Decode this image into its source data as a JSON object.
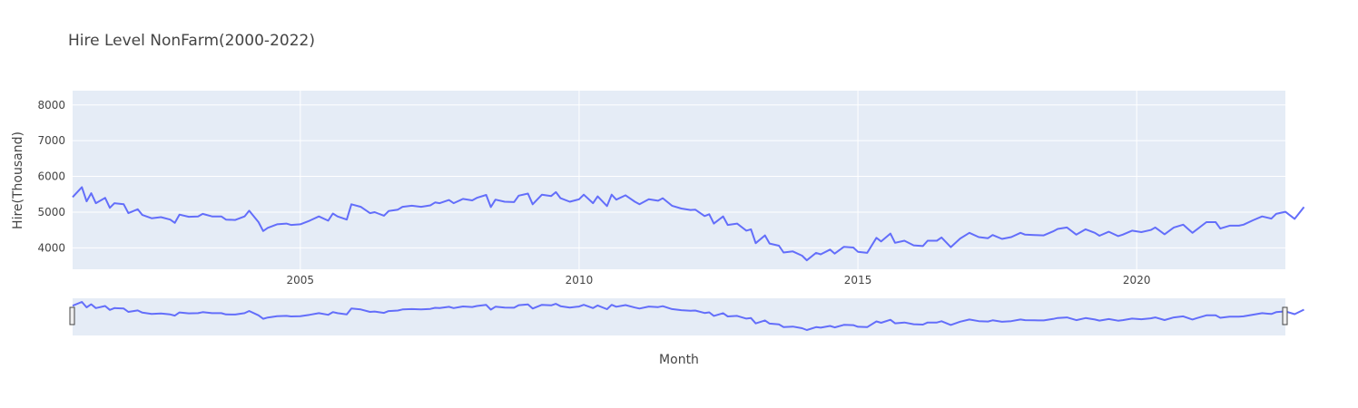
{
  "chart_data": {
    "type": "line",
    "title": "Hire Level NonFarm(2000-2022)",
    "xlabel": "Month",
    "ylabel": "Hire(Thousand)",
    "x_ticks": [
      "2005",
      "2010",
      "2015",
      "2020"
    ],
    "y_ticks": [
      "4000",
      "5000",
      "6000",
      "7000",
      "8000"
    ],
    "xlim": [
      "2000-12",
      "2022-09"
    ],
    "ylim": [
      3400,
      8400
    ],
    "grid": true,
    "range_slider": true,
    "colors": {
      "line": "#636efa",
      "plot_bg": "#e5ecf6",
      "grid": "#ffffff",
      "text": "#444444"
    },
    "series": [
      {
        "points": [
          [
            "2000-12",
            5420
          ],
          [
            "2001-02",
            5700
          ],
          [
            "2001-03",
            5300
          ],
          [
            "2001-04",
            5530
          ],
          [
            "2001-05",
            5250
          ],
          [
            "2001-07",
            5400
          ],
          [
            "2001-08",
            5120
          ],
          [
            "2001-09",
            5250
          ],
          [
            "2001-11",
            5220
          ],
          [
            "2001-12",
            4970
          ],
          [
            "2002-02",
            5080
          ],
          [
            "2002-03",
            4920
          ],
          [
            "2002-05",
            4830
          ],
          [
            "2002-07",
            4860
          ],
          [
            "2002-09",
            4790
          ],
          [
            "2002-10",
            4700
          ],
          [
            "2002-11",
            4930
          ],
          [
            "2003-01",
            4870
          ],
          [
            "2003-03",
            4880
          ],
          [
            "2003-04",
            4950
          ],
          [
            "2003-06",
            4880
          ],
          [
            "2003-08",
            4880
          ],
          [
            "2003-09",
            4790
          ],
          [
            "2003-11",
            4780
          ],
          [
            "2004-01",
            4880
          ],
          [
            "2004-02",
            5040
          ],
          [
            "2004-04",
            4720
          ],
          [
            "2004-05",
            4470
          ],
          [
            "2004-06",
            4560
          ],
          [
            "2004-08",
            4660
          ],
          [
            "2004-10",
            4680
          ],
          [
            "2004-11",
            4640
          ],
          [
            "2005-01",
            4660
          ],
          [
            "2005-03",
            4760
          ],
          [
            "2005-05",
            4880
          ],
          [
            "2005-07",
            4760
          ],
          [
            "2005-08",
            4960
          ],
          [
            "2005-09",
            4880
          ],
          [
            "2005-11",
            4790
          ],
          [
            "2005-12",
            5220
          ],
          [
            "2006-02",
            5150
          ],
          [
            "2006-04",
            4970
          ],
          [
            "2006-05",
            5000
          ],
          [
            "2006-07",
            4900
          ],
          [
            "2006-08",
            5030
          ],
          [
            "2006-10",
            5070
          ],
          [
            "2006-11",
            5150
          ],
          [
            "2007-01",
            5180
          ],
          [
            "2007-03",
            5150
          ],
          [
            "2007-05",
            5190
          ],
          [
            "2007-06",
            5270
          ],
          [
            "2007-07",
            5250
          ],
          [
            "2007-09",
            5340
          ],
          [
            "2007-10",
            5250
          ],
          [
            "2007-12",
            5370
          ],
          [
            "2008-02",
            5330
          ],
          [
            "2008-03",
            5400
          ],
          [
            "2008-05",
            5480
          ],
          [
            "2008-06",
            5140
          ],
          [
            "2008-07",
            5350
          ],
          [
            "2008-09",
            5290
          ],
          [
            "2008-11",
            5280
          ],
          [
            "2008-12",
            5460
          ],
          [
            "2009-02",
            5520
          ],
          [
            "2009-03",
            5220
          ],
          [
            "2009-05",
            5490
          ],
          [
            "2009-07",
            5450
          ],
          [
            "2009-08",
            5560
          ],
          [
            "2009-09",
            5390
          ],
          [
            "2009-11",
            5290
          ],
          [
            "2010-01",
            5360
          ],
          [
            "2010-02",
            5490
          ],
          [
            "2010-04",
            5250
          ],
          [
            "2010-05",
            5440
          ],
          [
            "2010-07",
            5170
          ],
          [
            "2010-08",
            5490
          ],
          [
            "2010-09",
            5350
          ],
          [
            "2010-11",
            5470
          ],
          [
            "2011-01",
            5290
          ],
          [
            "2011-02",
            5220
          ],
          [
            "2011-04",
            5360
          ],
          [
            "2011-06",
            5320
          ],
          [
            "2011-07",
            5390
          ],
          [
            "2011-09",
            5180
          ],
          [
            "2011-11",
            5100
          ],
          [
            "2012-01",
            5060
          ],
          [
            "2012-02",
            5070
          ],
          [
            "2012-04",
            4890
          ],
          [
            "2012-05",
            4940
          ],
          [
            "2012-06",
            4680
          ],
          [
            "2012-08",
            4880
          ],
          [
            "2012-09",
            4640
          ],
          [
            "2012-11",
            4680
          ],
          [
            "2013-01",
            4480
          ],
          [
            "2013-02",
            4520
          ],
          [
            "2013-03",
            4130
          ],
          [
            "2013-05",
            4350
          ],
          [
            "2013-06",
            4120
          ],
          [
            "2013-08",
            4060
          ],
          [
            "2013-09",
            3870
          ],
          [
            "2013-11",
            3900
          ],
          [
            "2014-01",
            3780
          ],
          [
            "2014-02",
            3650
          ],
          [
            "2014-04",
            3860
          ],
          [
            "2014-05",
            3820
          ],
          [
            "2014-07",
            3950
          ],
          [
            "2014-08",
            3840
          ],
          [
            "2014-10",
            4030
          ],
          [
            "2014-12",
            4010
          ],
          [
            "2015-01",
            3890
          ],
          [
            "2015-03",
            3860
          ],
          [
            "2015-05",
            4280
          ],
          [
            "2015-06",
            4180
          ],
          [
            "2015-08",
            4400
          ],
          [
            "2015-09",
            4140
          ],
          [
            "2015-11",
            4200
          ],
          [
            "2016-01",
            4070
          ],
          [
            "2016-03",
            4050
          ],
          [
            "2016-04",
            4200
          ],
          [
            "2016-06",
            4200
          ],
          [
            "2016-07",
            4290
          ],
          [
            "2016-09",
            4020
          ],
          [
            "2016-11",
            4260
          ],
          [
            "2017-01",
            4420
          ],
          [
            "2017-03",
            4300
          ],
          [
            "2017-05",
            4270
          ],
          [
            "2017-06",
            4360
          ],
          [
            "2017-08",
            4250
          ],
          [
            "2017-10",
            4300
          ],
          [
            "2017-12",
            4420
          ],
          [
            "2018-01",
            4370
          ],
          [
            "2018-03",
            4360
          ],
          [
            "2018-05",
            4350
          ],
          [
            "2018-07",
            4460
          ],
          [
            "2018-08",
            4530
          ],
          [
            "2018-10",
            4570
          ],
          [
            "2018-12",
            4370
          ],
          [
            "2019-02",
            4520
          ],
          [
            "2019-04",
            4420
          ],
          [
            "2019-05",
            4340
          ],
          [
            "2019-07",
            4450
          ],
          [
            "2019-09",
            4330
          ],
          [
            "2019-10",
            4370
          ],
          [
            "2019-12",
            4480
          ],
          [
            "2020-02",
            4440
          ],
          [
            "2020-04",
            4500
          ],
          [
            "2020-05",
            4570
          ],
          [
            "2020-07",
            4380
          ],
          [
            "2020-09",
            4570
          ],
          [
            "2020-11",
            4650
          ],
          [
            "2021-01",
            4420
          ],
          [
            "2021-02",
            4520
          ],
          [
            "2021-04",
            4720
          ],
          [
            "2021-06",
            4720
          ],
          [
            "2021-07",
            4540
          ],
          [
            "2021-09",
            4620
          ],
          [
            "2021-11",
            4620
          ],
          [
            "2021-12",
            4650
          ],
          [
            "2022-02",
            4770
          ],
          [
            "2022-04",
            4880
          ],
          [
            "2022-06",
            4820
          ],
          [
            "2022-07",
            4950
          ],
          [
            "2022-09",
            5010
          ],
          [
            "2022-11",
            4810
          ],
          [
            "2023-01",
            5140
          ]
        ]
      }
    ]
  }
}
